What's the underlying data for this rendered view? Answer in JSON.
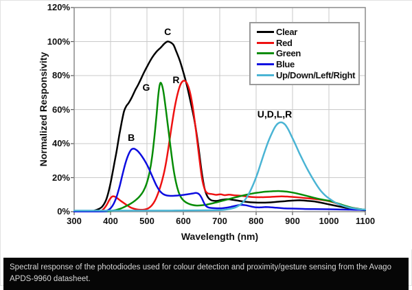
{
  "figure": {
    "caption": "Spectral response of the photodiodes used for colour detection and proximity/gesture sensing from the Avago APDS-9960 datasheet."
  },
  "colors": {
    "grid": "#c9c9c9",
    "axis_border": "#8a8a8a",
    "tick": "#555555",
    "caption_bg": "#060606",
    "caption_text": "#d6d6d6"
  },
  "chart_data": {
    "type": "line",
    "title": "",
    "xlabel": "Wavelength (nm)",
    "ylabel": "Normalized Responsivity",
    "xlim": [
      300,
      1100
    ],
    "ylim": [
      0,
      120
    ],
    "grid": true,
    "legend_position": "top-right",
    "x_ticks": [
      {
        "value": 300,
        "label": "300"
      },
      {
        "value": 400,
        "label": "400"
      },
      {
        "value": 500,
        "label": "500"
      },
      {
        "value": 600,
        "label": "600"
      },
      {
        "value": 700,
        "label": "700"
      },
      {
        "value": 800,
        "label": "800"
      },
      {
        "value": 900,
        "label": "900"
      },
      {
        "value": 1000,
        "label": "1000"
      },
      {
        "value": 1100,
        "label": "1100"
      }
    ],
    "y_ticks": [
      {
        "value": 0,
        "label": "0%"
      },
      {
        "value": 20,
        "label": "20%"
      },
      {
        "value": 40,
        "label": "40%"
      },
      {
        "value": 60,
        "label": "60%"
      },
      {
        "value": 80,
        "label": "80%"
      },
      {
        "value": 100,
        "label": "100%"
      },
      {
        "value": 120,
        "label": "120%"
      }
    ],
    "series": [
      {
        "name": "Clear",
        "color": "#000000",
        "points": [
          [
            300,
            0
          ],
          [
            340,
            0.2
          ],
          [
            355,
            0.6
          ],
          [
            368,
            1.6
          ],
          [
            378,
            3.2
          ],
          [
            388,
            7
          ],
          [
            396,
            13
          ],
          [
            403,
            20
          ],
          [
            410,
            28
          ],
          [
            417,
            36
          ],
          [
            424,
            45
          ],
          [
            431,
            53
          ],
          [
            437,
            59
          ],
          [
            443,
            62
          ],
          [
            450,
            64
          ],
          [
            458,
            67
          ],
          [
            468,
            71.5
          ],
          [
            478,
            75.5
          ],
          [
            490,
            81
          ],
          [
            502,
            86
          ],
          [
            514,
            90.5
          ],
          [
            526,
            94
          ],
          [
            538,
            96.5
          ],
          [
            548,
            98.8
          ],
          [
            556,
            100
          ],
          [
            565,
            99.5
          ],
          [
            573,
            98
          ],
          [
            580,
            94.5
          ],
          [
            590,
            89
          ],
          [
            600,
            82
          ],
          [
            610,
            74
          ],
          [
            620,
            64.5
          ],
          [
            631,
            53
          ],
          [
            641,
            39
          ],
          [
            650,
            24
          ],
          [
            658,
            14
          ],
          [
            666,
            9
          ],
          [
            676,
            6.8
          ],
          [
            690,
            6.3
          ],
          [
            705,
            6.9
          ],
          [
            720,
            7.3
          ],
          [
            735,
            7
          ],
          [
            755,
            6.3
          ],
          [
            775,
            5.7
          ],
          [
            795,
            5.4
          ],
          [
            815,
            5.3
          ],
          [
            835,
            5.4
          ],
          [
            858,
            5.8
          ],
          [
            880,
            6.2
          ],
          [
            900,
            6.5
          ],
          [
            920,
            6.7
          ],
          [
            940,
            6.4
          ],
          [
            960,
            6
          ],
          [
            980,
            5.2
          ],
          [
            1000,
            4.3
          ],
          [
            1025,
            3.2
          ],
          [
            1050,
            2.2
          ],
          [
            1075,
            1.4
          ],
          [
            1100,
            0.8
          ]
        ]
      },
      {
        "name": "Red",
        "color": "#ee1111",
        "points": [
          [
            300,
            0
          ],
          [
            368,
            0.2
          ],
          [
            378,
            1
          ],
          [
            388,
            3.5
          ],
          [
            397,
            7
          ],
          [
            404,
            8.8
          ],
          [
            411,
            8.9
          ],
          [
            418,
            8
          ],
          [
            427,
            6.5
          ],
          [
            437,
            5
          ],
          [
            447,
            3.5
          ],
          [
            458,
            2.2
          ],
          [
            470,
            1.4
          ],
          [
            482,
            1.1
          ],
          [
            494,
            1.3
          ],
          [
            504,
            2
          ],
          [
            513,
            3.6
          ],
          [
            522,
            6.5
          ],
          [
            531,
            11
          ],
          [
            540,
            17
          ],
          [
            549,
            25
          ],
          [
            558,
            36
          ],
          [
            567,
            49
          ],
          [
            576,
            61
          ],
          [
            585,
            70
          ],
          [
            594,
            75.5
          ],
          [
            603,
            77
          ],
          [
            611,
            75
          ],
          [
            619,
            69.5
          ],
          [
            627,
            60
          ],
          [
            635,
            47
          ],
          [
            643,
            33
          ],
          [
            651,
            20
          ],
          [
            659,
            13
          ],
          [
            667,
            10.8
          ],
          [
            678,
            10.4
          ],
          [
            690,
            9.9
          ],
          [
            702,
            10.2
          ],
          [
            714,
            9.7
          ],
          [
            726,
            10
          ],
          [
            740,
            9.6
          ],
          [
            756,
            9.4
          ],
          [
            772,
            9
          ],
          [
            790,
            8.6
          ],
          [
            810,
            8.5
          ],
          [
            830,
            8.6
          ],
          [
            850,
            8.8
          ],
          [
            870,
            9
          ],
          [
            890,
            8.8
          ],
          [
            910,
            8.5
          ],
          [
            930,
            8.1
          ],
          [
            950,
            7.7
          ],
          [
            970,
            7.2
          ],
          [
            990,
            6.6
          ],
          [
            1010,
            5.6
          ],
          [
            1030,
            4.2
          ],
          [
            1055,
            2.7
          ],
          [
            1080,
            1.7
          ],
          [
            1100,
            1.1
          ]
        ]
      },
      {
        "name": "Green",
        "color": "#068c06",
        "points": [
          [
            300,
            0
          ],
          [
            388,
            0.2
          ],
          [
            402,
            0.5
          ],
          [
            416,
            1
          ],
          [
            430,
            2
          ],
          [
            444,
            3.4
          ],
          [
            456,
            4.8
          ],
          [
            468,
            6.6
          ],
          [
            480,
            9
          ],
          [
            490,
            12
          ],
          [
            499,
            16.5
          ],
          [
            507,
            23
          ],
          [
            514,
            32
          ],
          [
            520,
            43
          ],
          [
            526,
            56
          ],
          [
            531,
            68
          ],
          [
            535,
            74.5
          ],
          [
            539,
            75.5
          ],
          [
            545,
            71
          ],
          [
            552,
            60
          ],
          [
            559,
            48
          ],
          [
            566,
            36
          ],
          [
            573,
            25
          ],
          [
            580,
            17
          ],
          [
            587,
            11.5
          ],
          [
            594,
            8.3
          ],
          [
            602,
            6.3
          ],
          [
            612,
            4.9
          ],
          [
            624,
            4
          ],
          [
            637,
            3.6
          ],
          [
            650,
            3.7
          ],
          [
            663,
            4.1
          ],
          [
            676,
            4.7
          ],
          [
            690,
            5.4
          ],
          [
            704,
            6.2
          ],
          [
            718,
            7
          ],
          [
            734,
            7.9
          ],
          [
            752,
            8.9
          ],
          [
            770,
            9.8
          ],
          [
            788,
            10.6
          ],
          [
            806,
            11.2
          ],
          [
            824,
            11.7
          ],
          [
            845,
            12
          ],
          [
            866,
            12.1
          ],
          [
            886,
            11.7
          ],
          [
            906,
            11
          ],
          [
            926,
            10
          ],
          [
            946,
            8.9
          ],
          [
            966,
            7.8
          ],
          [
            986,
            6.9
          ],
          [
            1003,
            6.3
          ],
          [
            1022,
            5
          ],
          [
            1042,
            3.6
          ],
          [
            1062,
            2.4
          ],
          [
            1082,
            1.6
          ],
          [
            1100,
            1.1
          ]
        ]
      },
      {
        "name": "Blue",
        "color": "#0d0de0",
        "points": [
          [
            300,
            0
          ],
          [
            382,
            0.2
          ],
          [
            392,
            0.8
          ],
          [
            401,
            2.2
          ],
          [
            409,
            4.8
          ],
          [
            417,
            9
          ],
          [
            425,
            15
          ],
          [
            433,
            22
          ],
          [
            441,
            28.5
          ],
          [
            449,
            33.5
          ],
          [
            457,
            36.5
          ],
          [
            464,
            37
          ],
          [
            471,
            36.3
          ],
          [
            479,
            34.6
          ],
          [
            487,
            32.3
          ],
          [
            495,
            29.6
          ],
          [
            503,
            26.4
          ],
          [
            511,
            22.6
          ],
          [
            519,
            18.6
          ],
          [
            527,
            15
          ],
          [
            536,
            12
          ],
          [
            545,
            10.3
          ],
          [
            555,
            9.5
          ],
          [
            566,
            9.3
          ],
          [
            578,
            9.4
          ],
          [
            590,
            9.6
          ],
          [
            602,
            9.9
          ],
          [
            614,
            10.3
          ],
          [
            626,
            10.7
          ],
          [
            635,
            11
          ],
          [
            643,
            10.3
          ],
          [
            650,
            8.2
          ],
          [
            656,
            5.5
          ],
          [
            662,
            3.4
          ],
          [
            670,
            2.4
          ],
          [
            680,
            2.1
          ],
          [
            692,
            2
          ],
          [
            705,
            2
          ],
          [
            718,
            2.3
          ],
          [
            730,
            2.8
          ],
          [
            742,
            3.4
          ],
          [
            753,
            3.9
          ],
          [
            762,
            4
          ],
          [
            773,
            3.7
          ],
          [
            785,
            3.1
          ],
          [
            798,
            2.6
          ],
          [
            812,
            2.5
          ],
          [
            826,
            2.7
          ],
          [
            840,
            2.6
          ],
          [
            856,
            2.3
          ],
          [
            875,
            2
          ],
          [
            900,
            1.8
          ],
          [
            930,
            1.6
          ],
          [
            960,
            1.5
          ],
          [
            1000,
            1.4
          ],
          [
            1050,
            1.2
          ],
          [
            1100,
            1
          ]
        ]
      },
      {
        "name": "Up/Down/Left/Right",
        "color": "#4ab4d4",
        "points": [
          [
            300,
            0.6
          ],
          [
            380,
            0.6
          ],
          [
            460,
            0.6
          ],
          [
            540,
            0.6
          ],
          [
            620,
            0.7
          ],
          [
            670,
            0.8
          ],
          [
            700,
            0.9
          ],
          [
            716,
            1.2
          ],
          [
            730,
            1.7
          ],
          [
            742,
            2.4
          ],
          [
            753,
            3.6
          ],
          [
            763,
            5.4
          ],
          [
            773,
            8
          ],
          [
            783,
            11.8
          ],
          [
            793,
            16.5
          ],
          [
            803,
            22
          ],
          [
            813,
            28.5
          ],
          [
            823,
            35
          ],
          [
            833,
            41
          ],
          [
            843,
            46
          ],
          [
            852,
            49.8
          ],
          [
            861,
            52
          ],
          [
            870,
            52.5
          ],
          [
            879,
            51.3
          ],
          [
            888,
            48.5
          ],
          [
            897,
            44.5
          ],
          [
            907,
            40
          ],
          [
            918,
            34.8
          ],
          [
            930,
            29.5
          ],
          [
            942,
            24.5
          ],
          [
            954,
            20
          ],
          [
            966,
            15.8
          ],
          [
            978,
            12.2
          ],
          [
            990,
            9.5
          ],
          [
            1002,
            7.5
          ],
          [
            1015,
            5.7
          ],
          [
            1028,
            4.3
          ],
          [
            1042,
            3.2
          ],
          [
            1056,
            2.4
          ],
          [
            1072,
            1.8
          ],
          [
            1086,
            1.4
          ],
          [
            1100,
            1.2
          ]
        ]
      }
    ],
    "annotations": [
      {
        "label": "C",
        "x": 557,
        "y": 106
      },
      {
        "label": "G",
        "x": 498,
        "y": 73
      },
      {
        "label": "R",
        "x": 580,
        "y": 77.5
      },
      {
        "label": "B",
        "x": 457,
        "y": 43.5
      },
      {
        "label": "U,D,L,R",
        "x": 851,
        "y": 57.5
      }
    ]
  }
}
